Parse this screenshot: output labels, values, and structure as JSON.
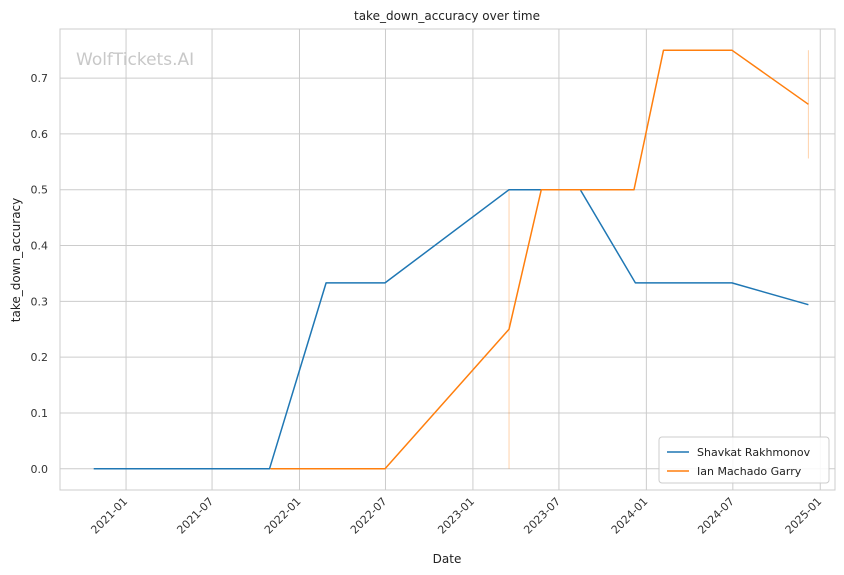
{
  "chart_data": {
    "type": "line",
    "title": "take_down_accuracy over time",
    "xlabel": "Date",
    "ylabel": "take_down_accuracy",
    "watermark": "WolfTickets.AI",
    "xlim": [
      "2020-08-15",
      "2025-02-01"
    ],
    "ylim": [
      -0.038,
      0.788
    ],
    "x_ticks": [
      "2021-01",
      "2021-07",
      "2022-01",
      "2022-07",
      "2023-01",
      "2023-07",
      "2024-01",
      "2024-07",
      "2025-01"
    ],
    "y_ticks": [
      "0.0",
      "0.1",
      "0.2",
      "0.3",
      "0.4",
      "0.5",
      "0.6",
      "0.7"
    ],
    "grid": true,
    "legend_position": "lower-right",
    "series": [
      {
        "name": "Shavkat Rakhmonov",
        "color": "#1f77b4",
        "points": [
          {
            "x": "2020-10-25",
            "y": 0.0
          },
          {
            "x": "2021-10-30",
            "y": 0.0
          },
          {
            "x": "2022-02-26",
            "y": 0.333
          },
          {
            "x": "2022-06-30",
            "y": 0.333
          },
          {
            "x": "2023-03-18",
            "y": 0.5
          },
          {
            "x": "2023-08-15",
            "y": 0.5
          },
          {
            "x": "2023-12-09",
            "y": 0.333
          },
          {
            "x": "2024-06-29",
            "y": 0.333
          },
          {
            "x": "2024-12-07",
            "y": 0.294
          }
        ]
      },
      {
        "name": "Ian Machado Garry",
        "color": "#ff7f0e",
        "points": [
          {
            "x": "2021-11-01",
            "y": 0.0
          },
          {
            "x": "2022-06-30",
            "y": 0.0
          },
          {
            "x": "2023-03-18",
            "y": 0.25
          },
          {
            "x": "2023-05-25",
            "y": 0.5
          },
          {
            "x": "2023-12-06",
            "y": 0.5
          },
          {
            "x": "2024-02-06",
            "y": 0.75
          },
          {
            "x": "2024-06-29",
            "y": 0.75
          },
          {
            "x": "2024-12-07",
            "y": 0.653
          }
        ],
        "error_bars": [
          {
            "x": "2023-03-18",
            "low": 0.0,
            "high": 0.5
          },
          {
            "x": "2024-12-07",
            "low": 0.556,
            "high": 0.75
          }
        ]
      }
    ]
  }
}
